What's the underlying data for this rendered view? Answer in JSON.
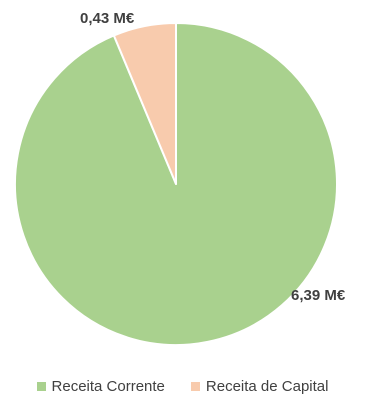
{
  "chart_data": {
    "type": "pie",
    "title": "",
    "categories": [
      "Receita Corrente",
      "Receita de Capital"
    ],
    "values": [
      6.39,
      0.43
    ],
    "data_labels": [
      "6,39 M€",
      "0,43 M€"
    ],
    "colors": [
      "#A9D18E",
      "#F8CBAD"
    ],
    "start_angle_deg": 0,
    "direction": "clockwise",
    "legend_position": "bottom"
  },
  "legend": {
    "items": [
      {
        "label": "Receita Corrente",
        "color": "#A9D18E"
      },
      {
        "label": "Receita de Capital",
        "color": "#F8CBAD"
      }
    ]
  }
}
